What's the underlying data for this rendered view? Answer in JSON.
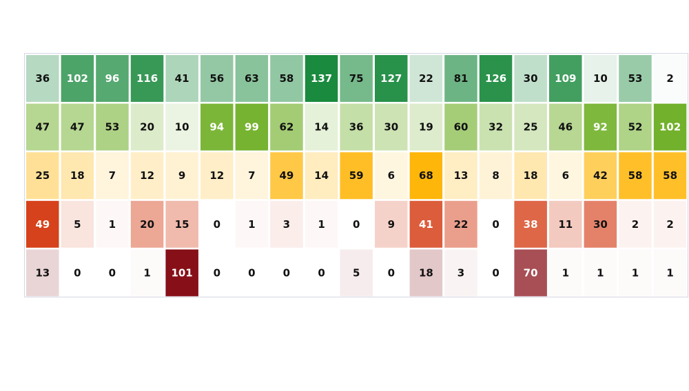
{
  "chart_data": {
    "type": "heatmap",
    "title": "",
    "xlabel": "",
    "ylabel": "",
    "grid": false,
    "legend": "none",
    "rows": [
      {
        "color_low": "#ffffff",
        "color_high": "#1a8a3e",
        "values": [
          36,
          102,
          96,
          116,
          41,
          56,
          63,
          58,
          137,
          75,
          127,
          22,
          81,
          126,
          30,
          109,
          10,
          53,
          2
        ]
      },
      {
        "color_low": "#ffffff",
        "color_high": "#72b12b",
        "values": [
          47,
          47,
          53,
          20,
          10,
          94,
          99,
          62,
          14,
          36,
          30,
          19,
          60,
          32,
          25,
          46,
          92,
          52,
          102
        ]
      },
      {
        "color_low": "#ffffff",
        "color_high": "#ffb60a",
        "values": [
          25,
          18,
          7,
          12,
          9,
          12,
          7,
          49,
          14,
          59,
          6,
          68,
          13,
          8,
          18,
          6,
          42,
          58,
          58
        ]
      },
      {
        "color_low": "#ffffff",
        "color_high": "#d6421b",
        "values": [
          49,
          5,
          1,
          20,
          15,
          0,
          1,
          3,
          1,
          0,
          9,
          41,
          22,
          0,
          38,
          11,
          30,
          2,
          2
        ]
      },
      {
        "color_low": "#ffffff",
        "color_high": "#870f17",
        "values": [
          13,
          0,
          0,
          1,
          101,
          0,
          0,
          0,
          0,
          5,
          0,
          18,
          3,
          0,
          70,
          1,
          1,
          1,
          1
        ]
      }
    ]
  }
}
